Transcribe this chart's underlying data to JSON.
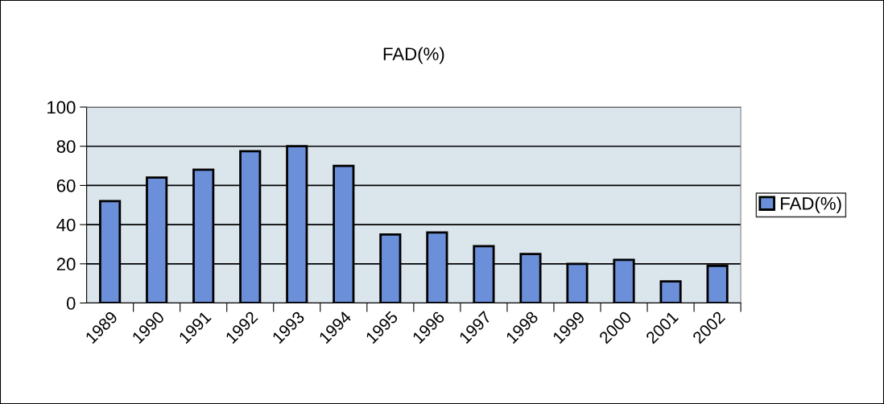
{
  "chart_data": {
    "type": "bar",
    "title": "FAD(%)",
    "categories": [
      "1989",
      "1990",
      "1991",
      "1992",
      "1993",
      "1994",
      "1995",
      "1996",
      "1997",
      "1998",
      "1999",
      "2000",
      "2001",
      "2002"
    ],
    "series": [
      {
        "name": "FAD(%)",
        "color": "#6b8fd8",
        "values": [
          52,
          64,
          68,
          77.5,
          80,
          70,
          35,
          36,
          29,
          25,
          20,
          22,
          11,
          19
        ]
      }
    ],
    "ylim": [
      0,
      100
    ],
    "yticks": [
      0,
      20,
      40,
      60,
      80,
      100
    ],
    "grid": "y",
    "legend": "right"
  }
}
